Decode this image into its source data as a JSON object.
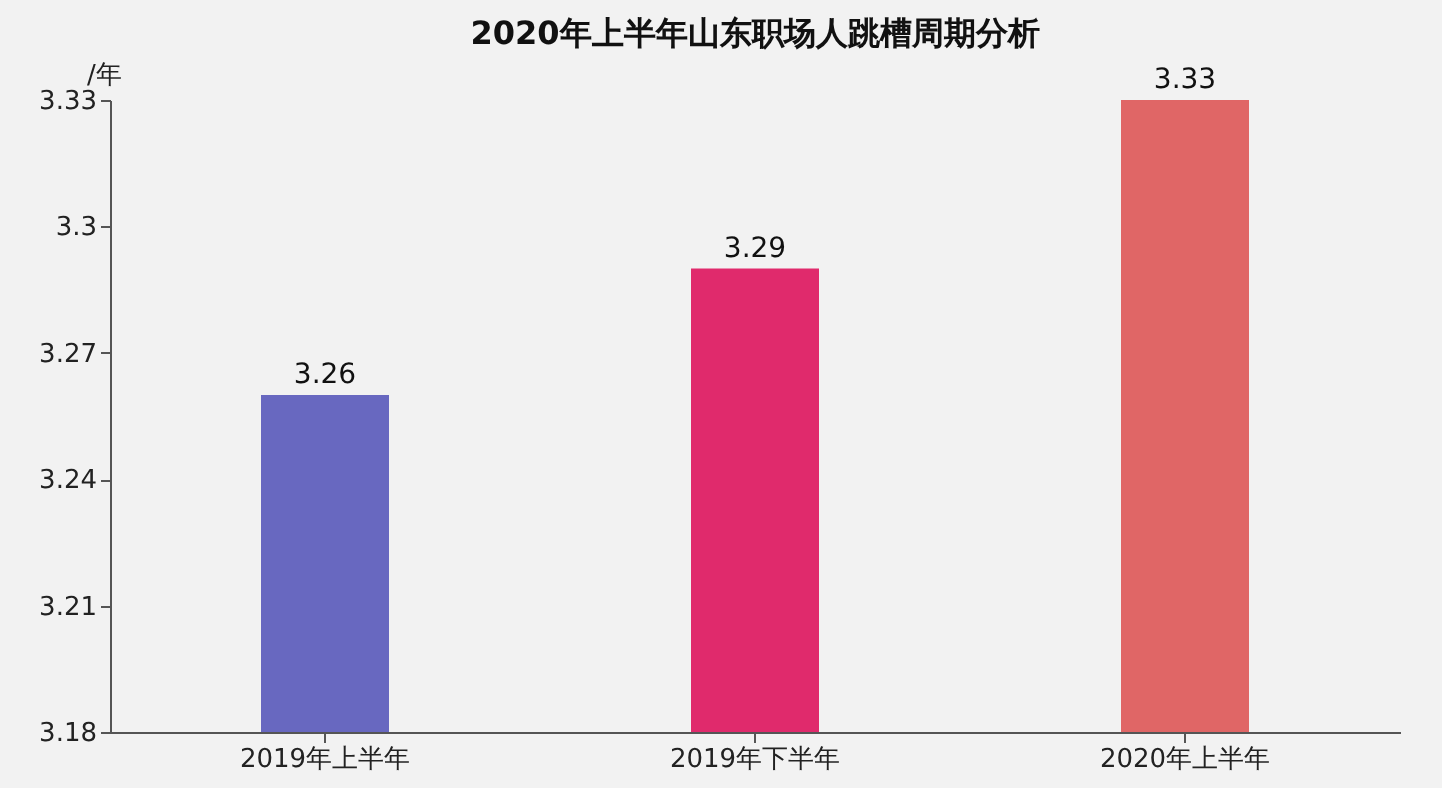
{
  "chart_data": {
    "type": "bar",
    "title": "2020年上半年山东职场人跳槽周期分析",
    "ylabel": "/年",
    "categories": [
      "2019年上半年",
      "2019年下半年",
      "2020年上半年"
    ],
    "values": [
      3.26,
      3.29,
      3.33
    ],
    "colors": [
      "#6868c0",
      "#e02a6c",
      "#e06666"
    ],
    "ylim": [
      3.18,
      3.33
    ],
    "yticks": [
      3.18,
      3.21,
      3.24,
      3.27,
      3.3,
      3.33
    ],
    "grid": false,
    "data_labels": true
  }
}
